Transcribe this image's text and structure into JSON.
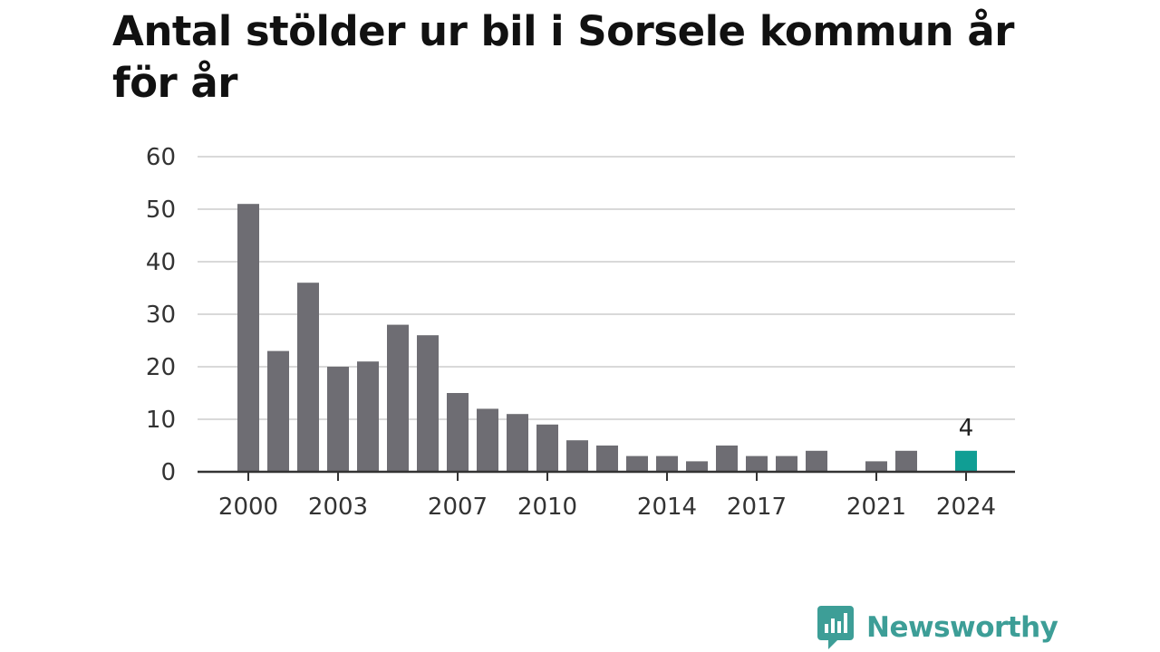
{
  "page": {
    "title": "Antal stölder ur bil i Sorsele kommun år för år"
  },
  "logo": {
    "text": "Newsworthy",
    "icon": "newsworthy-chart-bubble-icon",
    "color": "#3d9e97"
  },
  "colors": {
    "bar": "#6e6d73",
    "highlight": "#109e94",
    "grid": "#d9d9d9",
    "axis": "#333333"
  },
  "chart_data": {
    "type": "bar",
    "title": "Antal stölder ur bil i Sorsele kommun år för år",
    "xlabel": "",
    "ylabel": "",
    "categories": [
      2000,
      2001,
      2002,
      2003,
      2004,
      2005,
      2006,
      2007,
      2008,
      2009,
      2010,
      2011,
      2012,
      2013,
      2014,
      2015,
      2016,
      2017,
      2018,
      2019,
      2020,
      2021,
      2022,
      2023,
      2024
    ],
    "values": [
      51,
      23,
      36,
      20,
      21,
      28,
      26,
      15,
      12,
      11,
      9,
      6,
      5,
      3,
      3,
      2,
      5,
      3,
      3,
      4,
      0,
      2,
      4,
      0,
      4
    ],
    "highlight_category": 2024,
    "highlight_label": "4",
    "ylim": [
      0,
      60
    ],
    "yticks": [
      0,
      10,
      20,
      30,
      40,
      50,
      60
    ],
    "xtick_labels": [
      "2000",
      "2003",
      "2007",
      "2010",
      "2014",
      "2017",
      "2021",
      "2024"
    ],
    "grid": true,
    "legend": "none"
  }
}
